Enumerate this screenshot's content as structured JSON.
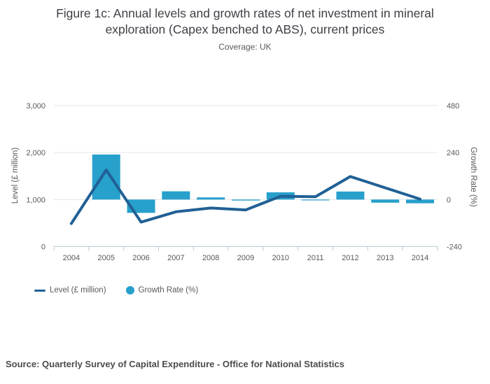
{
  "title": "Figure 1c: Annual levels and growth rates of net investment in mineral exploration (Capex benched to ABS), current prices",
  "subtitle": "Coverage: UK",
  "source": "Source: Quarterly Survey of Capital Expenditure - Office for National Statistics",
  "colors": {
    "line": "#206095",
    "bar": "#27a0cc",
    "grid": "#e6e6e6",
    "axis_line": "#bccbd5",
    "text": "#595959",
    "title_text": "#3f3f46"
  },
  "chart_data": {
    "type": "combo",
    "categories": [
      "2004",
      "2005",
      "2006",
      "2007",
      "2008",
      "2009",
      "2010",
      "2011",
      "2012",
      "2013",
      "2014"
    ],
    "series": [
      {
        "name": "Level (£ million)",
        "type": "line",
        "axis": "left",
        "color": "#206095",
        "values": [
          490,
          1630,
          520,
          740,
          820,
          780,
          1070,
          1060,
          1490,
          1250,
          1010
        ]
      },
      {
        "name": "Growth Rate (%)",
        "type": "bar",
        "axis": "right",
        "color": "#27a0cc",
        "values": [
          null,
          230,
          -68,
          42,
          11,
          -5,
          37,
          -1,
          41,
          -16,
          -19
        ]
      }
    ],
    "left_axis": {
      "label": "Level (£ million)",
      "ticks": [
        0,
        1000,
        2000,
        3000
      ],
      "tick_labels": [
        "0",
        "1,000",
        "2,000",
        "3,000"
      ],
      "range": [
        0,
        3200
      ]
    },
    "right_axis": {
      "label": "Growth Rate (%)",
      "ticks": [
        -240,
        0,
        240,
        480
      ],
      "tick_labels": [
        "-240",
        "0",
        "240",
        "480"
      ],
      "range": [
        -240,
        520
      ]
    },
    "legend_position": "bottom-left",
    "grid": true
  }
}
